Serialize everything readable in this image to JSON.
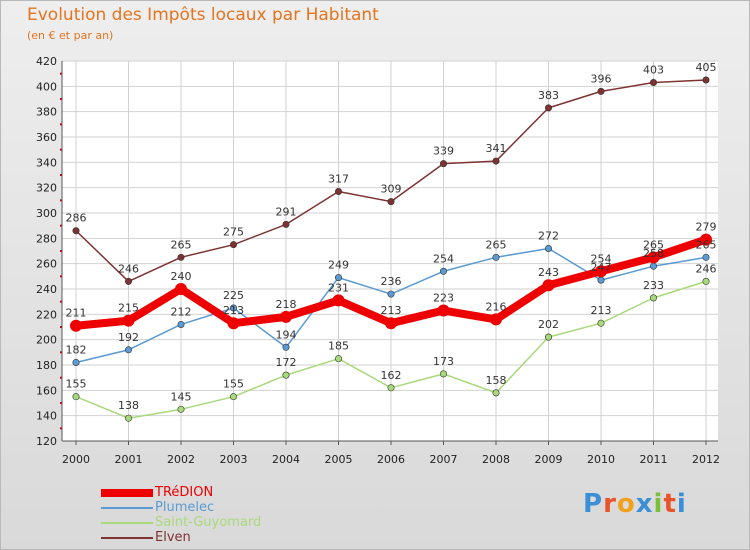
{
  "header": {
    "title": "Evolution des Impôts locaux par Habitant",
    "subtitle": "(en € et par an)"
  },
  "brand": {
    "text": "Proxiti",
    "letter_colors": [
      "#3a8fd6",
      "#e8542a",
      "#f2a11d",
      "#3a8fd6",
      "#7cbf3a",
      "#e8542a",
      "#3a8fd6"
    ]
  },
  "chart_data": {
    "type": "line",
    "title": "Evolution des Impôts locaux par Habitant",
    "subtitle": "(en € et par an)",
    "xlabel": "",
    "ylabel": "",
    "x": [
      "2000",
      "2001",
      "2002",
      "2003",
      "2004",
      "2005",
      "2006",
      "2007",
      "2008",
      "2009",
      "2010",
      "2011",
      "2012"
    ],
    "ylim": [
      120,
      420
    ],
    "yticks": [
      120,
      140,
      160,
      180,
      200,
      220,
      240,
      260,
      280,
      300,
      320,
      340,
      360,
      380,
      400,
      420
    ],
    "grid": true,
    "legend_position": "bottom-left",
    "series": [
      {
        "name": "TRéDION",
        "color": "#ee0000",
        "emphasis": "thick",
        "values": [
          211,
          215,
          240,
          213,
          218,
          231,
          213,
          223,
          216,
          243,
          254,
          265,
          279
        ],
        "labels": [
          "211",
          "215",
          "240",
          "213",
          "218",
          "231",
          "213",
          "223",
          "216",
          "243",
          "254",
          "265",
          "279"
        ]
      },
      {
        "name": "Plumelec",
        "color": "#5b9ad3",
        "emphasis": "thin",
        "values": [
          182,
          192,
          212,
          225,
          194,
          249,
          236,
          254,
          265,
          272,
          247,
          258,
          265
        ],
        "labels": [
          "182",
          "192",
          "212",
          "225",
          "194",
          "249",
          "236",
          "254",
          "265",
          "272",
          "247",
          "258",
          "265"
        ]
      },
      {
        "name": "Saint-Guyomard",
        "color": "#a8d97a",
        "emphasis": "thin",
        "values": [
          155,
          138,
          145,
          155,
          172,
          185,
          162,
          173,
          158,
          202,
          213,
          233,
          246
        ],
        "labels": [
          "155",
          "138",
          "145",
          "155",
          "172",
          "185",
          "162",
          "173",
          "158",
          "202",
          "213",
          "233",
          "246"
        ]
      },
      {
        "name": "Elven",
        "color": "#7e3333",
        "emphasis": "thin",
        "values": [
          286,
          246,
          265,
          275,
          291,
          317,
          309,
          339,
          341,
          383,
          396,
          403,
          405
        ],
        "labels": [
          "286",
          "246",
          "265",
          "275",
          "291",
          "317",
          "309",
          "339",
          "341",
          "383",
          "396",
          "403",
          "405"
        ]
      }
    ]
  }
}
